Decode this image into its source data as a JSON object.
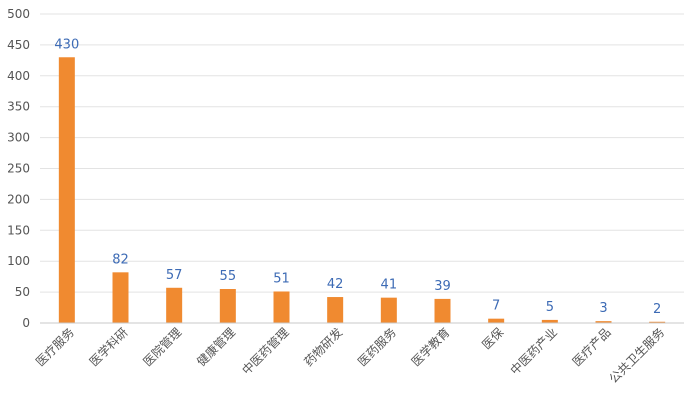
{
  "chart_data": {
    "type": "bar",
    "categories": [
      "医疗服务",
      "医学科研",
      "医院管理",
      "健康管理",
      "中医药管理",
      "药物研发",
      "医药服务",
      "医学教育",
      "医保",
      "中医药产业",
      "医疗产品",
      "公共卫生服务"
    ],
    "values": [
      430,
      82,
      57,
      55,
      51,
      42,
      41,
      39,
      7,
      5,
      3,
      2
    ],
    "ylim": [
      0,
      500
    ],
    "yticks": [
      0,
      50,
      100,
      150,
      200,
      250,
      300,
      350,
      400,
      450,
      500
    ],
    "grid": true,
    "data_labels": true,
    "colors": {
      "bar": "#f08a30",
      "data_label": "#3d6bb5",
      "grid": "#e3e3e3",
      "axis_text": "#555555",
      "axis_line": "#c8c8c8"
    }
  }
}
